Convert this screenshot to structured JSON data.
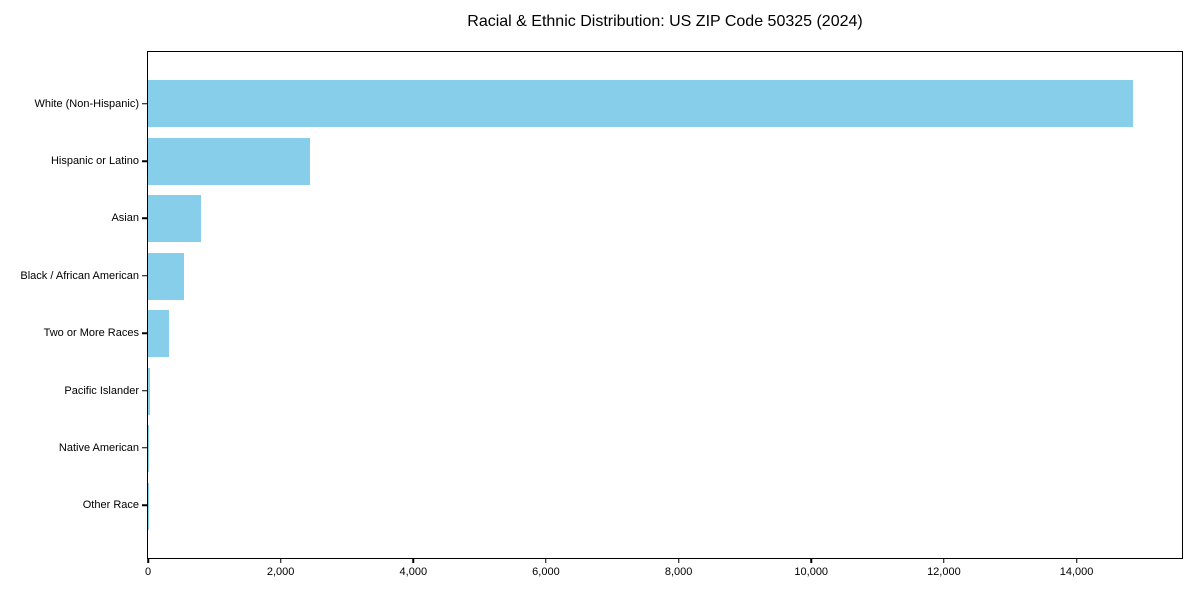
{
  "chart_data": {
    "type": "bar",
    "orientation": "horizontal",
    "title": "Racial & Ethnic Distribution: US ZIP Code 50325 (2024)",
    "categories": [
      "White (Non-Hispanic)",
      "Hispanic or Latino",
      "Asian",
      "Black / African American",
      "Two or More Races",
      "Pacific Islander",
      "Native American",
      "Other Race"
    ],
    "values": [
      14850,
      2440,
      800,
      550,
      310,
      25,
      18,
      8
    ],
    "xlabel": "",
    "ylabel": "",
    "xlim": [
      0,
      15590
    ],
    "x_ticks": [
      0,
      2000,
      4000,
      6000,
      8000,
      10000,
      12000,
      14000
    ],
    "x_tick_labels": [
      "0",
      "2,000",
      "4,000",
      "6,000",
      "8,000",
      "10,000",
      "12,000",
      "14,000"
    ],
    "bar_color": "#87CEEB",
    "background_color": "#ffffff",
    "grid": false,
    "legend": "none"
  }
}
